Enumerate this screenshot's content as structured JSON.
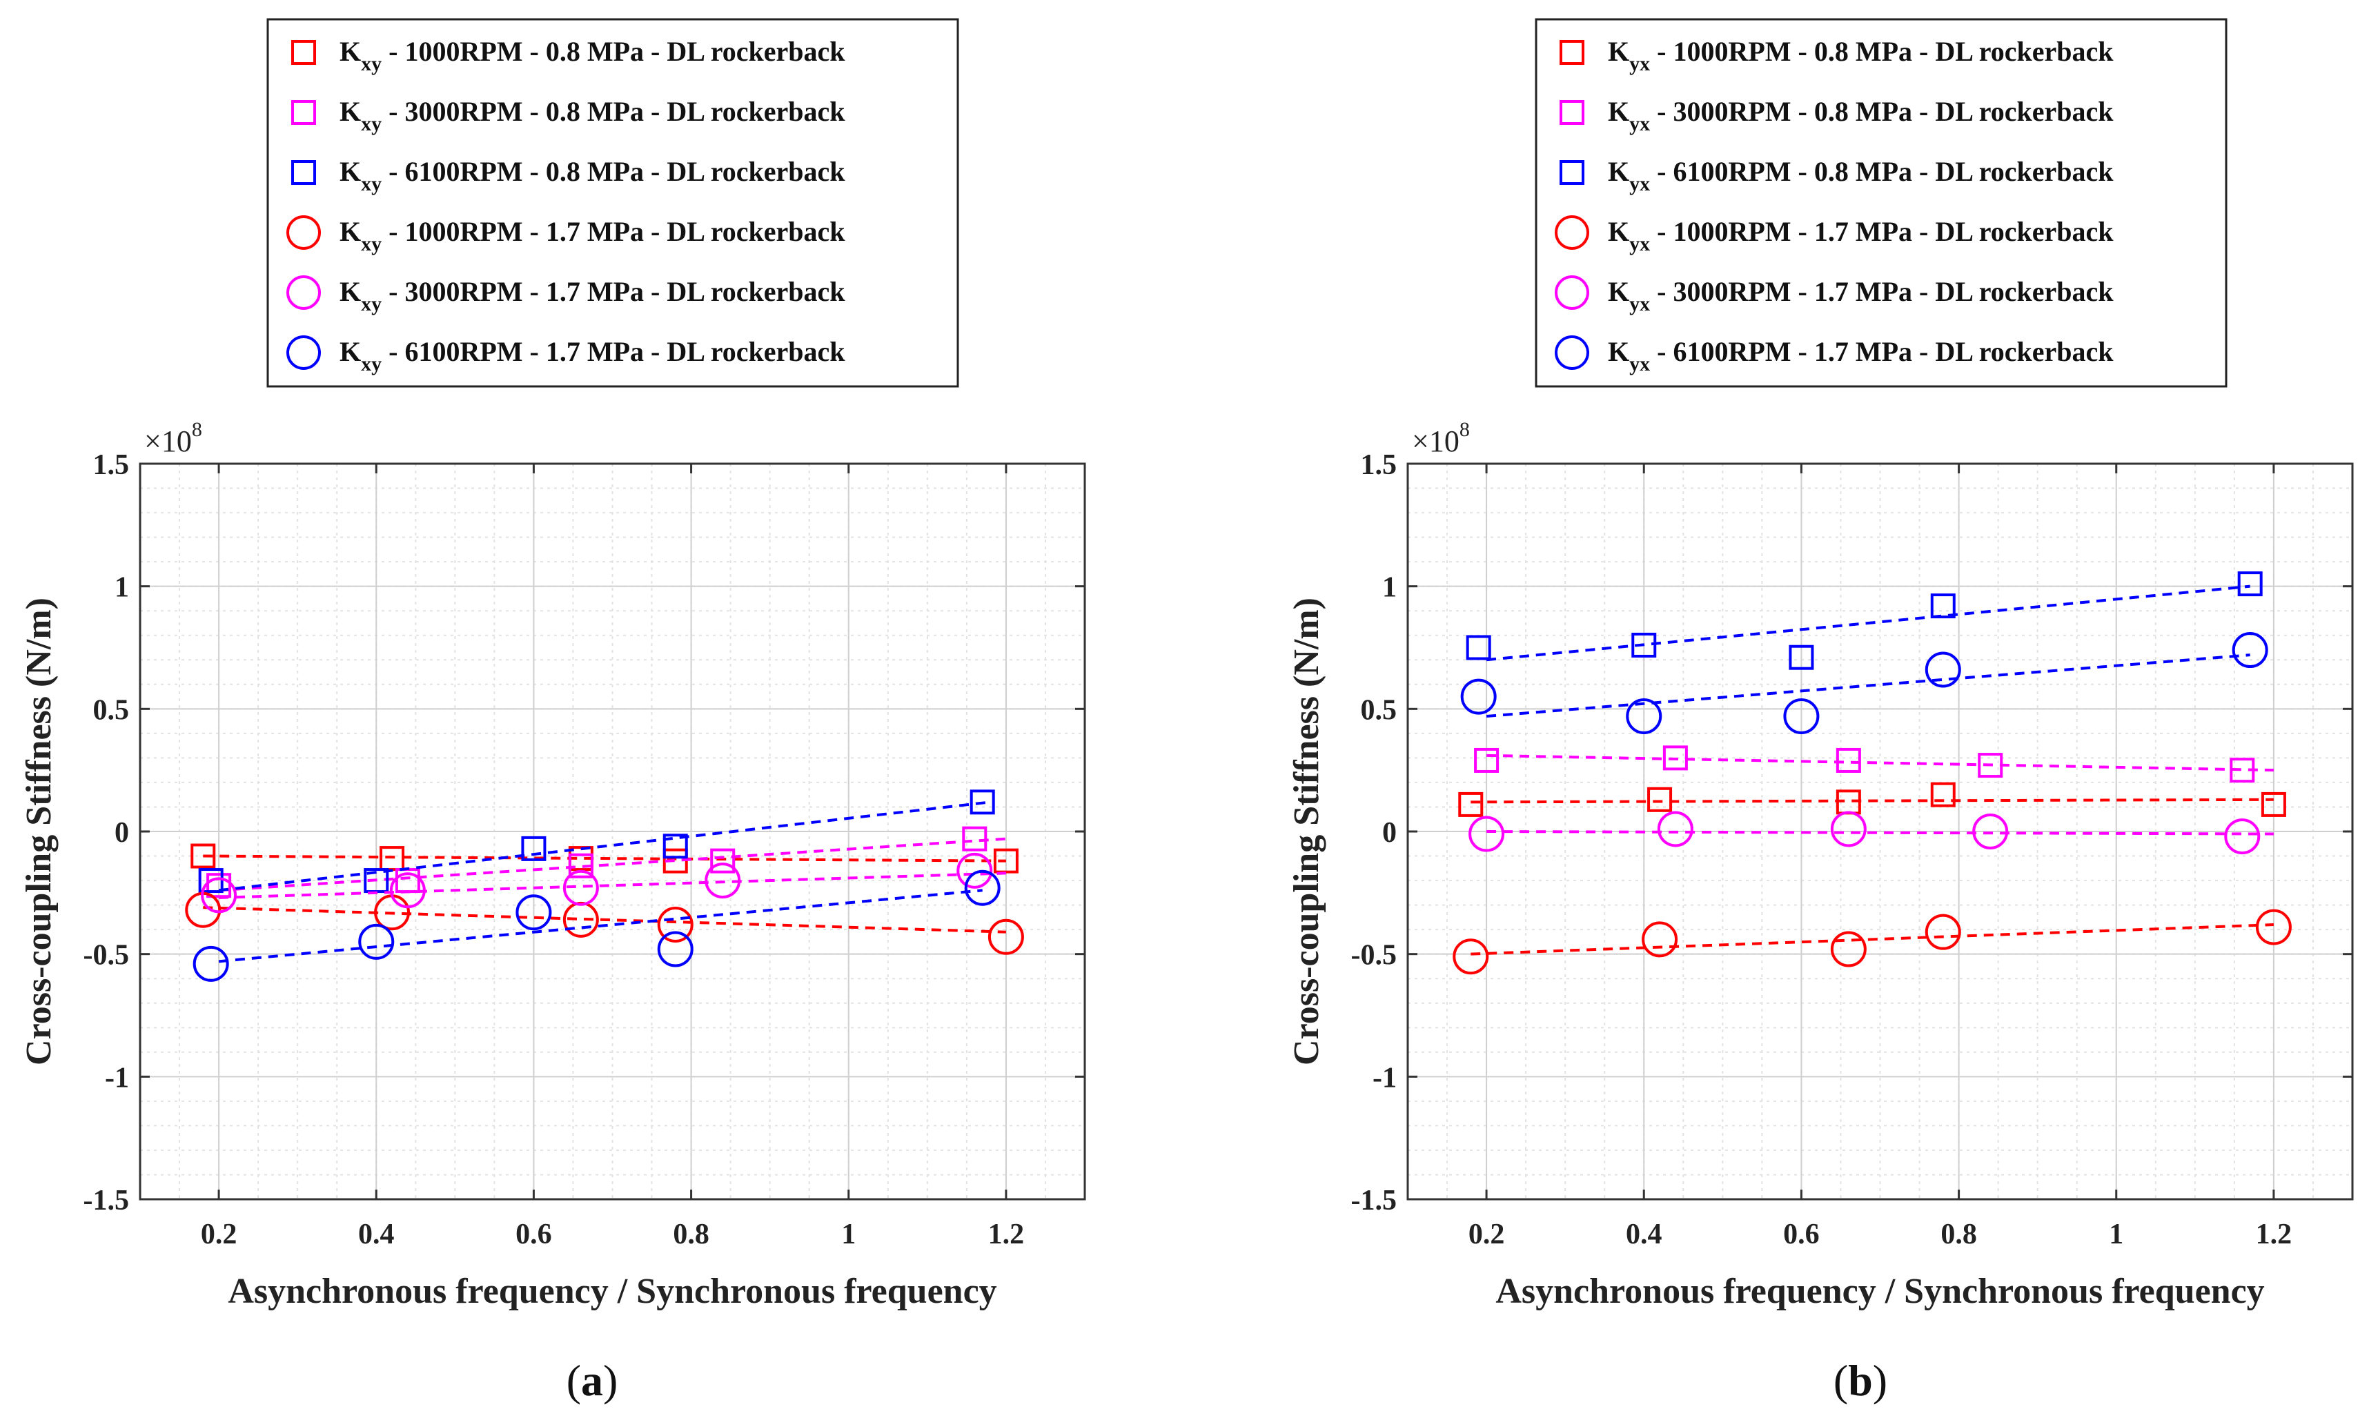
{
  "chart_data": [
    {
      "type": "scatter",
      "panel_label": "(a)",
      "panel_letter": "a",
      "xlabel": "Asynchronous frequency / Synchronous frequency",
      "ylabel": "Cross-coupling Stiffness (N/m)",
      "y_multiplier_base": "×10",
      "y_multiplier_exp": "8",
      "xlim": [
        0.1,
        1.3
      ],
      "ylim": [
        -1.5,
        1.5
      ],
      "xticks": [
        0.2,
        0.4,
        0.6,
        0.8,
        1.0,
        1.2
      ],
      "xtick_labels": [
        "0.2",
        "0.4",
        "0.6",
        "0.8",
        "1",
        "1.2"
      ],
      "yticks": [
        -1.5,
        -1,
        -0.5,
        0,
        0.5,
        1,
        1.5
      ],
      "ytick_labels": [
        "-1.5",
        "-1",
        "-0.5",
        "0",
        "0.5",
        "1",
        "1.5"
      ],
      "grid": true,
      "legend_position": "top-center",
      "series": [
        {
          "legend_main": "K",
          "legend_sub": "xy",
          "legend_rest": " - 1000RPM - 0.8 MPa - DL rockerback",
          "marker": "square",
          "color": "#ff0000",
          "x": [
            0.18,
            0.42,
            0.66,
            0.78,
            1.2
          ],
          "y": [
            -0.1,
            -0.11,
            -0.11,
            -0.12,
            -0.12
          ],
          "fit": [
            [
              0.18,
              -0.1
            ],
            [
              1.2,
              -0.12
            ]
          ]
        },
        {
          "legend_main": "K",
          "legend_sub": "xy",
          "legend_rest": " - 3000RPM - 0.8 MPa - DL rockerback",
          "marker": "square",
          "color": "#ff00ff",
          "x": [
            0.2,
            0.44,
            0.66,
            0.84,
            1.16
          ],
          "y": [
            -0.22,
            -0.2,
            -0.14,
            -0.12,
            -0.03
          ],
          "fit": [
            [
              0.2,
              -0.24
            ],
            [
              1.2,
              -0.03
            ]
          ]
        },
        {
          "legend_main": "K",
          "legend_sub": "xy",
          "legend_rest": " - 6100RPM - 0.8 MPa - DL rockerback",
          "marker": "square",
          "color": "#0000ff",
          "x": [
            0.19,
            0.4,
            0.6,
            0.78,
            1.17
          ],
          "y": [
            -0.2,
            -0.2,
            -0.07,
            -0.06,
            0.12
          ],
          "fit": [
            [
              0.2,
              -0.24
            ],
            [
              1.18,
              0.12
            ]
          ]
        },
        {
          "legend_main": "K",
          "legend_sub": "xy",
          "legend_rest": " - 1000RPM - 1.7 MPa - DL rockerback",
          "marker": "circle",
          "color": "#ff0000",
          "x": [
            0.18,
            0.42,
            0.66,
            0.78,
            1.2
          ],
          "y": [
            -0.32,
            -0.33,
            -0.36,
            -0.38,
            -0.43
          ],
          "fit": [
            [
              0.18,
              -0.31
            ],
            [
              1.2,
              -0.41
            ]
          ]
        },
        {
          "legend_main": "K",
          "legend_sub": "xy",
          "legend_rest": " - 3000RPM - 1.7 MPa - DL rockerback",
          "marker": "circle",
          "color": "#ff00ff",
          "x": [
            0.2,
            0.44,
            0.66,
            0.84,
            1.16
          ],
          "y": [
            -0.26,
            -0.24,
            -0.23,
            -0.2,
            -0.16
          ],
          "fit": [
            [
              0.2,
              -0.27
            ],
            [
              1.2,
              -0.17
            ]
          ]
        },
        {
          "legend_main": "K",
          "legend_sub": "xy",
          "legend_rest": " - 6100RPM - 1.7 MPa - DL rockerback",
          "marker": "circle",
          "color": "#0000ff",
          "x": [
            0.19,
            0.4,
            0.6,
            0.78,
            1.17
          ],
          "y": [
            -0.54,
            -0.45,
            -0.33,
            -0.48,
            -0.23
          ],
          "fit": [
            [
              0.2,
              -0.53
            ],
            [
              1.17,
              -0.24
            ]
          ]
        }
      ]
    },
    {
      "type": "scatter",
      "panel_label": "(b)",
      "panel_letter": "b",
      "xlabel": "Asynchronous frequency / Synchronous frequency",
      "ylabel": "Cross-coupling Stiffness (N/m)",
      "y_multiplier_base": "×10",
      "y_multiplier_exp": "8",
      "xlim": [
        0.1,
        1.3
      ],
      "ylim": [
        -1.5,
        1.5
      ],
      "xticks": [
        0.2,
        0.4,
        0.6,
        0.8,
        1.0,
        1.2
      ],
      "xtick_labels": [
        "0.2",
        "0.4",
        "0.6",
        "0.8",
        "1",
        "1.2"
      ],
      "yticks": [
        -1.5,
        -1,
        -0.5,
        0,
        0.5,
        1,
        1.5
      ],
      "ytick_labels": [
        "-1.5",
        "-1",
        "-0.5",
        "0",
        "0.5",
        "1",
        "1.5"
      ],
      "grid": true,
      "legend_position": "top-center",
      "series": [
        {
          "legend_main": "K",
          "legend_sub": "yx",
          "legend_rest": " - 1000RPM - 0.8 MPa - DL rockerback",
          "marker": "square",
          "color": "#ff0000",
          "x": [
            0.18,
            0.42,
            0.66,
            0.78,
            1.2
          ],
          "y": [
            0.11,
            0.13,
            0.12,
            0.15,
            0.11
          ],
          "fit": [
            [
              0.18,
              0.12
            ],
            [
              1.2,
              0.13
            ]
          ]
        },
        {
          "legend_main": "K",
          "legend_sub": "yx",
          "legend_rest": " - 3000RPM - 0.8 MPa - DL rockerback",
          "marker": "square",
          "color": "#ff00ff",
          "x": [
            0.2,
            0.44,
            0.66,
            0.84,
            1.16
          ],
          "y": [
            0.29,
            0.3,
            0.29,
            0.27,
            0.25
          ],
          "fit": [
            [
              0.2,
              0.31
            ],
            [
              1.2,
              0.25
            ]
          ]
        },
        {
          "legend_main": "K",
          "legend_sub": "yx",
          "legend_rest": " - 6100RPM - 0.8 MPa - DL rockerback",
          "marker": "square",
          "color": "#0000ff",
          "x": [
            0.19,
            0.4,
            0.6,
            0.78,
            1.17
          ],
          "y": [
            0.75,
            0.76,
            0.71,
            0.92,
            1.01
          ],
          "fit": [
            [
              0.2,
              0.7
            ],
            [
              1.17,
              1.0
            ]
          ]
        },
        {
          "legend_main": "K",
          "legend_sub": "yx",
          "legend_rest": " - 1000RPM - 1.7 MPa - DL rockerback",
          "marker": "circle",
          "color": "#ff0000",
          "x": [
            0.18,
            0.42,
            0.66,
            0.78,
            1.2
          ],
          "y": [
            -0.51,
            -0.44,
            -0.48,
            -0.41,
            -0.39
          ],
          "fit": [
            [
              0.18,
              -0.5
            ],
            [
              1.2,
              -0.38
            ]
          ]
        },
        {
          "legend_main": "K",
          "legend_sub": "yx",
          "legend_rest": " - 3000RPM - 1.7 MPa - DL rockerback",
          "marker": "circle",
          "color": "#ff00ff",
          "x": [
            0.2,
            0.44,
            0.66,
            0.84,
            1.16
          ],
          "y": [
            -0.01,
            0.01,
            0.01,
            0.0,
            -0.02
          ],
          "fit": [
            [
              0.2,
              0.0
            ],
            [
              1.2,
              -0.01
            ]
          ]
        },
        {
          "legend_main": "K",
          "legend_sub": "yx",
          "legend_rest": " - 6100RPM - 1.7 MPa - DL rockerback",
          "marker": "circle",
          "color": "#0000ff",
          "x": [
            0.19,
            0.4,
            0.6,
            0.78,
            1.17
          ],
          "y": [
            0.55,
            0.47,
            0.47,
            0.66,
            0.74
          ],
          "fit": [
            [
              0.2,
              0.47
            ],
            [
              1.17,
              0.72
            ]
          ]
        }
      ]
    }
  ]
}
